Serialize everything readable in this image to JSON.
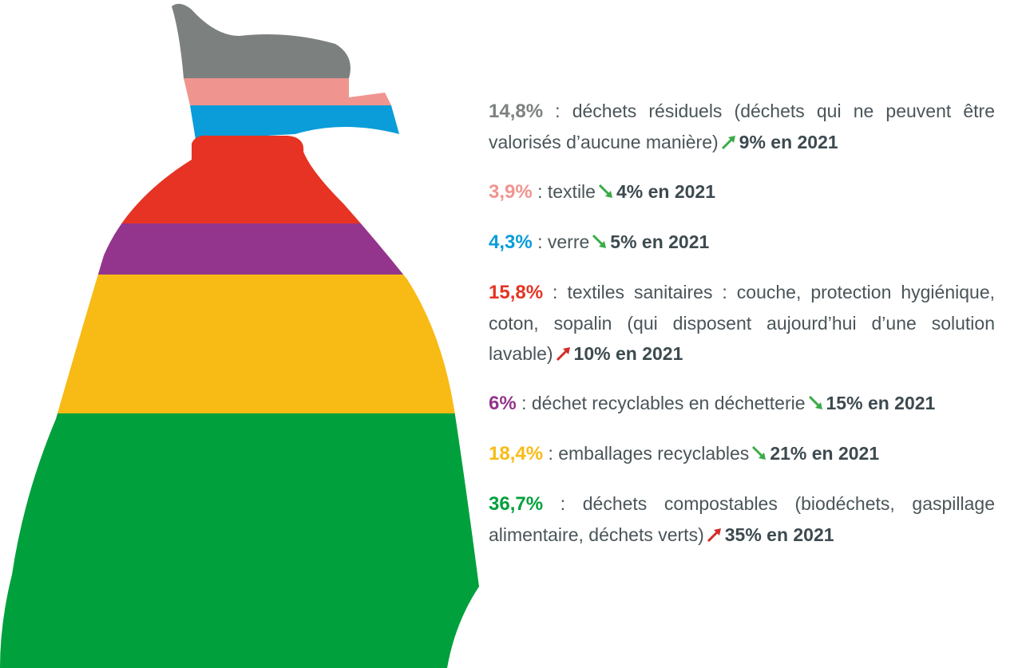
{
  "chart_data": {
    "type": "stacked-shape",
    "title": "",
    "categories": [
      {
        "value_label": "14,8%",
        "value": 14.8,
        "label": "déchets résiduels (déchets qui ne peuvent être valorisés d’aucune manière)",
        "trend": "up",
        "trend_color": "#3aab48",
        "prev_label": "9% en 2021",
        "prev_value": 9,
        "color": "#7c8180"
      },
      {
        "value_label": "3,9%",
        "value": 3.9,
        "label": "textile",
        "trend": "down",
        "trend_color": "#3aab48",
        "prev_label": "4% en 2021",
        "prev_value": 4,
        "color": "#f0948f"
      },
      {
        "value_label": "4,3%",
        "value": 4.3,
        "label": "verre",
        "trend": "down",
        "trend_color": "#3aab48",
        "prev_label": "5% en 2021",
        "prev_value": 5,
        "color": "#0a9dd9"
      },
      {
        "value_label": "15,8%",
        "value": 15.8,
        "label": "textiles sanitaires : couche, protection hygiénique, coton, sopalin (qui disposent aujourd’hui d’une solution lavable)",
        "trend": "up",
        "trend_color": "#d42a2a",
        "prev_label": "10% en 2021",
        "prev_value": 10,
        "color": "#e63323"
      },
      {
        "value_label": "6%",
        "value": 6,
        "label": "déchet recyclables en déchetterie",
        "trend": "down",
        "trend_color": "#3aab48",
        "prev_label": "15% en 2021",
        "prev_value": 15,
        "color": "#93358c"
      },
      {
        "value_label": "18,4%",
        "value": 18.4,
        "label": "emballages recyclables",
        "trend": "down",
        "trend_color": "#3aab48",
        "prev_label": "21% en 2021",
        "prev_value": 21,
        "color": "#f8bb15"
      },
      {
        "value_label": "36,7%",
        "value": 36.7,
        "label": "déchets compostables (biodéchets, gaspillage alimentaire, déchets verts)",
        "trend": "up",
        "trend_color": "#d42a2a",
        "prev_label": "35% en 2021",
        "prev_value": 35,
        "color": "#00a03c"
      }
    ]
  }
}
